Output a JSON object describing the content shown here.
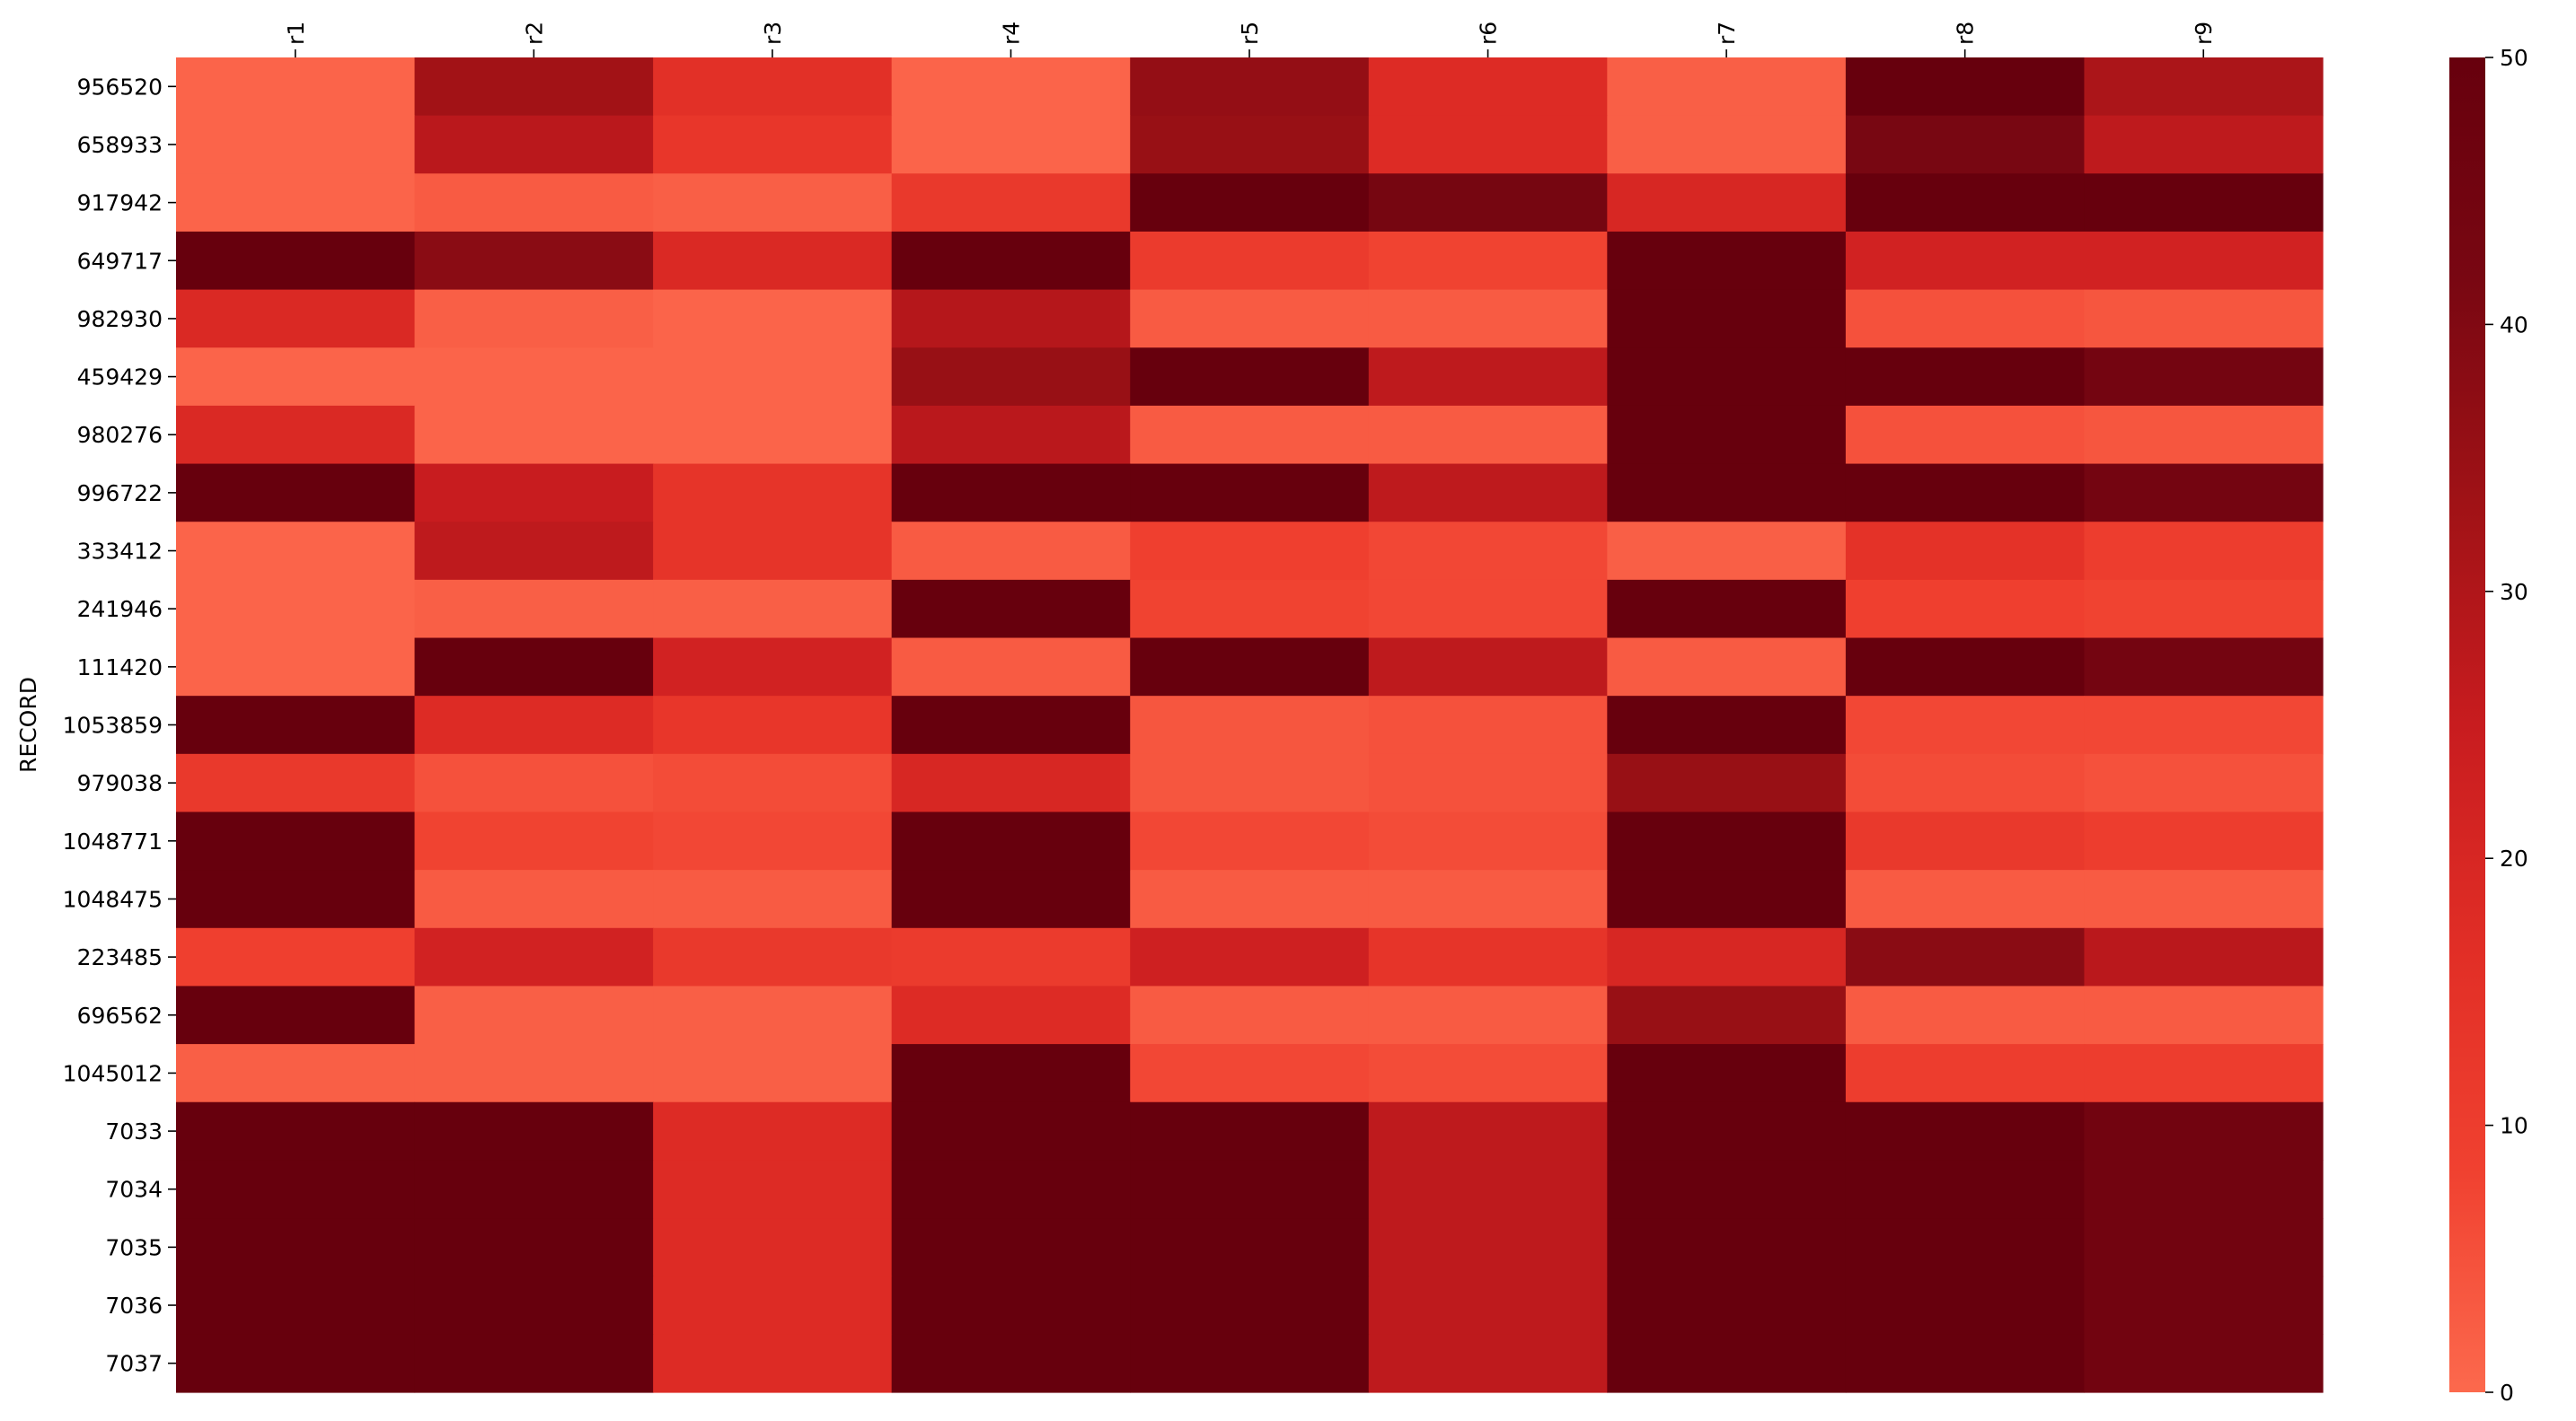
{
  "chart_data": {
    "type": "heatmap",
    "title": "",
    "xlabel": "",
    "ylabel": "RECORD",
    "columns": [
      "r1",
      "r2",
      "r3",
      "r4",
      "r5",
      "r6",
      "r7",
      "r8",
      "r9"
    ],
    "rows": [
      "956520",
      "658933",
      "917942",
      "649717",
      "982930",
      "459429",
      "980276",
      "996722",
      "333412",
      "241946",
      "111420",
      "1053859",
      "979038",
      "1048771",
      "1048475",
      "223485",
      "696562",
      "1045012",
      "7033",
      "7034",
      "7035",
      "7036",
      "7037"
    ],
    "values": [
      [
        1,
        33,
        16,
        1,
        36,
        18,
        2,
        50,
        31
      ],
      [
        1,
        28,
        13,
        1,
        35,
        18,
        2,
        42,
        27
      ],
      [
        1,
        3,
        2,
        12,
        50,
        43,
        20,
        50,
        50
      ],
      [
        50,
        38,
        19,
        50,
        11,
        8,
        50,
        22,
        22
      ],
      [
        19,
        2,
        1,
        29,
        3,
        3,
        50,
        5,
        4
      ],
      [
        1,
        1,
        1,
        35,
        50,
        27,
        50,
        50,
        44
      ],
      [
        19,
        1,
        1,
        28,
        3,
        3,
        50,
        5,
        4
      ],
      [
        50,
        25,
        14,
        50,
        50,
        27,
        50,
        50,
        44
      ],
      [
        1,
        27,
        14,
        3,
        9,
        7,
        2,
        15,
        10
      ],
      [
        1,
        2,
        2,
        50,
        8,
        7,
        50,
        9,
        8
      ],
      [
        1,
        50,
        22,
        3,
        50,
        27,
        3,
        50,
        44
      ],
      [
        50,
        18,
        13,
        50,
        4,
        5,
        50,
        7,
        7
      ],
      [
        12,
        5,
        6,
        20,
        4,
        5,
        35,
        6,
        5
      ],
      [
        50,
        8,
        7,
        50,
        7,
        6,
        50,
        12,
        10
      ],
      [
        50,
        3,
        3,
        50,
        3,
        3,
        50,
        3,
        3
      ],
      [
        9,
        22,
        12,
        11,
        23,
        14,
        20,
        38,
        28
      ],
      [
        50,
        2,
        2,
        18,
        3,
        3,
        35,
        3,
        3
      ],
      [
        2,
        2,
        2,
        50,
        7,
        6,
        50,
        10,
        10
      ],
      [
        50,
        50,
        18,
        50,
        50,
        27,
        50,
        50,
        45
      ],
      [
        50,
        50,
        18,
        50,
        50,
        27,
        50,
        50,
        45
      ],
      [
        50,
        50,
        18,
        50,
        50,
        27,
        50,
        50,
        45
      ],
      [
        50,
        50,
        18,
        50,
        50,
        27,
        50,
        50,
        45
      ],
      [
        50,
        50,
        18,
        50,
        50,
        27,
        50,
        50,
        45
      ]
    ],
    "vmin": 0,
    "vmax": 50,
    "colorbar_ticks": [
      "0",
      "10",
      "20",
      "30",
      "40",
      "50"
    ],
    "colormap": [
      "#fc694d",
      "#f04130",
      "#e12e26",
      "#c81c1f",
      "#a01216",
      "#790712",
      "#67000d"
    ]
  }
}
